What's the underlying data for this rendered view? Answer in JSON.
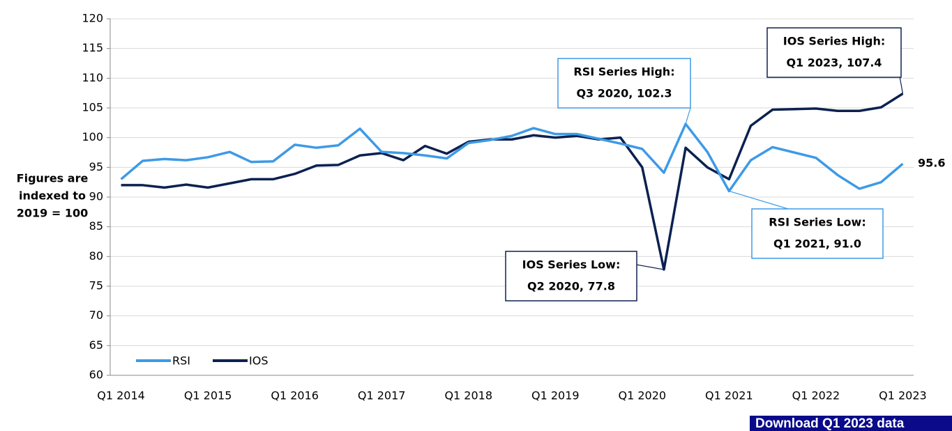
{
  "chart_data": {
    "type": "line",
    "y_label": [
      "Figures are",
      "indexed to",
      "2019 = 100"
    ],
    "categories": [
      "Q1 2014",
      null,
      null,
      null,
      "Q1 2015",
      null,
      null,
      null,
      "Q1 2016",
      null,
      null,
      null,
      "Q1 2017",
      null,
      null,
      null,
      "Q1 2018",
      null,
      null,
      null,
      "Q1 2019",
      null,
      null,
      null,
      "Q1 2020",
      null,
      null,
      null,
      "Q1 2021",
      null,
      null,
      null,
      "Q1 2022",
      null,
      null,
      null,
      "Q1 2023"
    ],
    "series": [
      {
        "name": "RSI",
        "color": "#3d9ae6",
        "values": [
          93.0,
          96.1,
          96.4,
          96.2,
          96.7,
          97.6,
          95.9,
          96.0,
          98.8,
          98.3,
          98.7,
          101.5,
          97.6,
          97.4,
          97.0,
          96.5,
          99.1,
          99.6,
          100.3,
          101.6,
          100.6,
          100.6,
          99.8,
          99.0,
          98.1,
          94.1,
          102.3,
          97.6,
          91.0,
          96.2,
          98.4,
          97.5,
          96.6,
          93.7,
          91.4,
          92.5,
          95.6
        ]
      },
      {
        "name": "IOS",
        "color": "#0b2150",
        "values": [
          92.0,
          92.0,
          91.6,
          92.1,
          91.6,
          92.3,
          93.0,
          93.0,
          93.9,
          95.3,
          95.4,
          97.0,
          97.4,
          96.2,
          98.6,
          97.3,
          99.3,
          99.7,
          99.7,
          100.4,
          100.0,
          100.3,
          99.7,
          100.0,
          95.0,
          77.8,
          98.3,
          95.0,
          93.0,
          102.0,
          104.7,
          104.8,
          104.9,
          104.5,
          104.5,
          105.1,
          107.4
        ]
      }
    ],
    "ylim": [
      60,
      120
    ],
    "yticks": [
      60,
      65,
      70,
      75,
      80,
      85,
      90,
      95,
      100,
      105,
      110,
      115,
      120
    ],
    "grid": true,
    "annotations": [
      {
        "lines": [
          "RSI Series High:",
          "Q3 2020, 102.3"
        ],
        "color": "#3d9ae6"
      },
      {
        "lines": [
          "IOS Series High:",
          "Q1 2023, 107.4"
        ],
        "color": "#0b2150"
      },
      {
        "lines": [
          "RSI Series Low:",
          "Q1 2021, 91.0"
        ],
        "color": "#3d9ae6"
      },
      {
        "lines": [
          "IOS Series Low:",
          "Q2 2020, 77.8"
        ],
        "color": "#0b2150"
      }
    ]
  },
  "download_button": "Download Q1 2023 data"
}
